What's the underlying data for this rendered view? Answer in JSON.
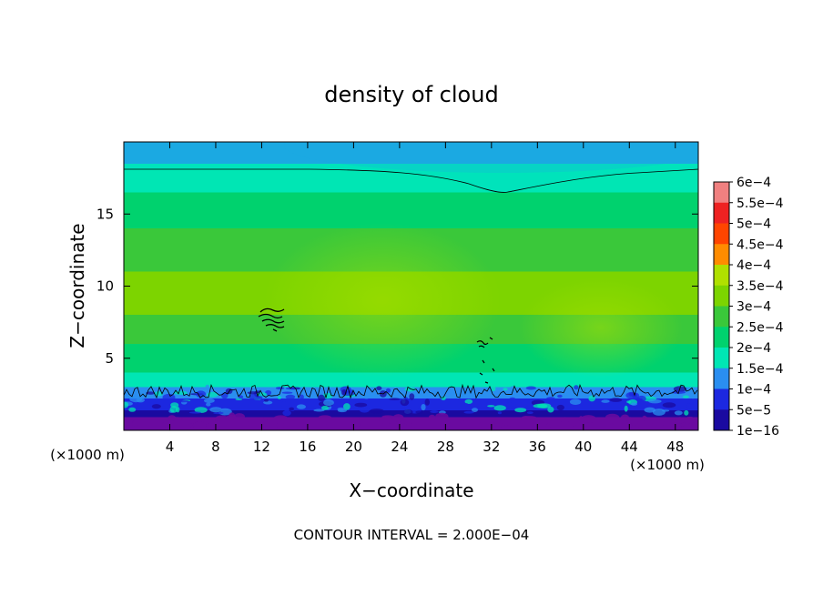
{
  "chart_data": {
    "type": "heatmap",
    "title": "density of cloud",
    "xlabel": "X−coordinate",
    "ylabel": "Z−coordinate",
    "x_unit_label": "(×1000 m)",
    "x_ticks": [
      "4",
      "8",
      "12",
      "16",
      "20",
      "24",
      "28",
      "32",
      "36",
      "40",
      "44",
      "48"
    ],
    "y_ticks": [
      "5",
      "10",
      "15"
    ],
    "xlim": [
      0,
      50
    ],
    "ylim": [
      0,
      20
    ],
    "colorbar": {
      "labels": [
        "6e−4",
        "5.5e−4",
        "5e−4",
        "4.5e−4",
        "4e−4",
        "3.5e−4",
        "3e−4",
        "2.5e−4",
        "2e−4",
        "1.5e−4",
        "1e−4",
        "5e−5",
        "1e−16"
      ],
      "colors": [
        "#f08080",
        "#ee2222",
        "#ff4500",
        "#ff8c00",
        "#b0e000",
        "#7dd400",
        "#3ac83a",
        "#00d26e",
        "#00e6b4",
        "#2a8ef0",
        "#1c28e0",
        "#1a0aa0",
        "#6a0aa0"
      ]
    },
    "contour_interval": "CONTOUR INTERVAL = 2.000E−04",
    "field_bands_bottom_to_top": [
      {
        "z_range": [
          0.0,
          0.9
        ],
        "level": "1e−16"
      },
      {
        "z_range": [
          0.9,
          1.4
        ],
        "level": "5e−5"
      },
      {
        "z_range": [
          1.4,
          2.2
        ],
        "level": "1e−4"
      },
      {
        "z_range": [
          2.2,
          3.0
        ],
        "level": "1.5e−4"
      },
      {
        "z_range": [
          3.0,
          4.0
        ],
        "level": "2e−4"
      },
      {
        "z_range": [
          4.0,
          6.0
        ],
        "level": "2.5e−4"
      },
      {
        "z_range": [
          6.0,
          8.0
        ],
        "level": "3e−4"
      },
      {
        "z_range": [
          8.0,
          11.0
        ],
        "level": "3.5e−4"
      },
      {
        "z_range": [
          11.0,
          14.0
        ],
        "level": "3e−4"
      },
      {
        "z_range": [
          14.0,
          16.5
        ],
        "level": "2.5e−4"
      },
      {
        "z_range": [
          16.5,
          18.5
        ],
        "level": "2e−4"
      },
      {
        "z_range": [
          18.5,
          20.0
        ],
        "level": "1.5e−4"
      }
    ]
  }
}
